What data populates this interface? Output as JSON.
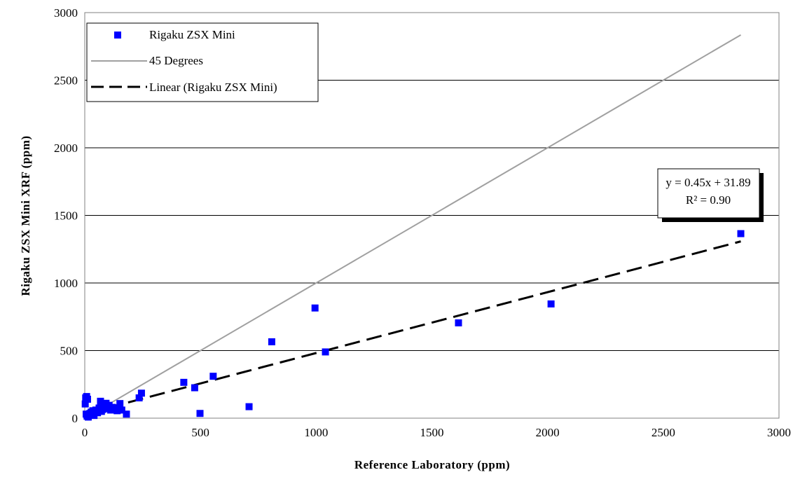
{
  "chart_data": {
    "type": "scatter",
    "xlabel": "Reference Laboratory (ppm)",
    "ylabel": "Rigaku ZSX Mini XRF (ppm)",
    "xlim": [
      0,
      3000
    ],
    "ylim": [
      0,
      3000
    ],
    "xticks": [
      0,
      500,
      1000,
      1500,
      2000,
      2500,
      3000
    ],
    "yticks": [
      0,
      500,
      1000,
      1500,
      2000,
      2500,
      3000
    ],
    "grid": "horizontal",
    "legend_position": "top-left",
    "legend": [
      {
        "label": "Rigaku ZSX Mini",
        "kind": "marker"
      },
      {
        "label": "45 Degrees",
        "kind": "line"
      },
      {
        "label": "Linear (Rigaku ZSX Mini)",
        "kind": "dashed-line"
      }
    ],
    "series": [
      {
        "name": "Rigaku ZSX Mini",
        "color": "#0000ff",
        "marker": "square",
        "points": [
          [
            2,
            105
          ],
          [
            4,
            150
          ],
          [
            8,
            160
          ],
          [
            12,
            140
          ],
          [
            6,
            30
          ],
          [
            10,
            15
          ],
          [
            15,
            8
          ],
          [
            18,
            25
          ],
          [
            22,
            35
          ],
          [
            28,
            45
          ],
          [
            35,
            55
          ],
          [
            40,
            20
          ],
          [
            48,
            60
          ],
          [
            55,
            40
          ],
          [
            62,
            75
          ],
          [
            68,
            125
          ],
          [
            72,
            50
          ],
          [
            78,
            65
          ],
          [
            85,
            85
          ],
          [
            92,
            110
          ],
          [
            98,
            70
          ],
          [
            105,
            95
          ],
          [
            112,
            60
          ],
          [
            120,
            80
          ],
          [
            130,
            70
          ],
          [
            140,
            55
          ],
          [
            152,
            108
          ],
          [
            160,
            60
          ],
          [
            180,
            30
          ],
          [
            235,
            150
          ],
          [
            245,
            185
          ],
          [
            428,
            265
          ],
          [
            475,
            225
          ],
          [
            498,
            35
          ],
          [
            555,
            310
          ],
          [
            710,
            85
          ],
          [
            808,
            565
          ],
          [
            995,
            815
          ],
          [
            1040,
            490
          ],
          [
            1615,
            705
          ],
          [
            2015,
            845
          ],
          [
            2835,
            1365
          ]
        ]
      },
      {
        "name": "45 Degrees",
        "color": "#a0a0a0",
        "line": [
          [
            0,
            0
          ],
          [
            2835,
            2835
          ]
        ]
      },
      {
        "name": "Linear (Rigaku ZSX Mini)",
        "color": "#000000",
        "dash": true,
        "slope": 0.45,
        "intercept": 31.89,
        "x_range": [
          0,
          2835
        ]
      }
    ],
    "trendline_label": {
      "equation": "y = 0.45x + 31.89",
      "r2": "R² = 0.90"
    }
  }
}
